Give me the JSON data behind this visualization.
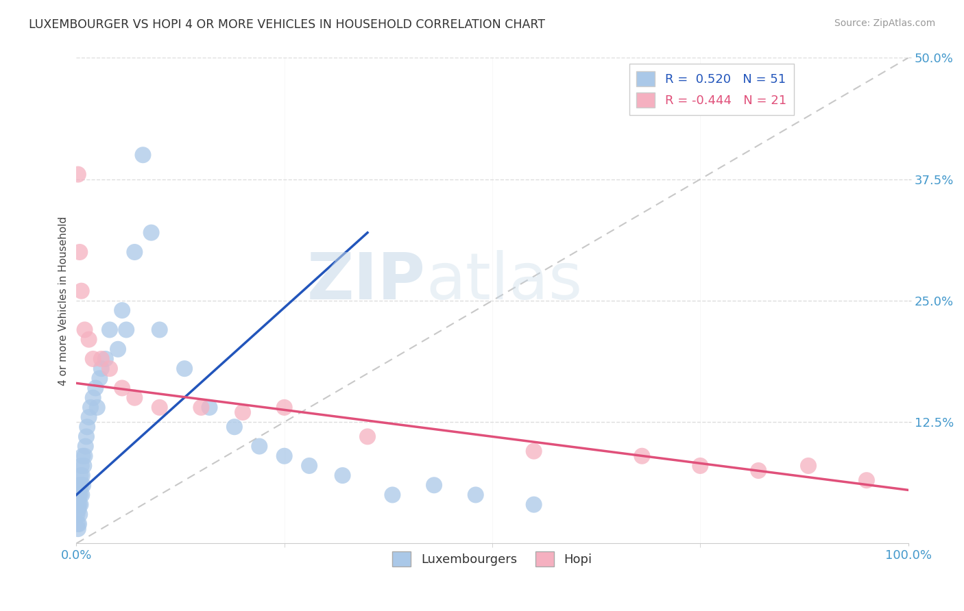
{
  "title": "LUXEMBOURGER VS HOPI 4 OR MORE VEHICLES IN HOUSEHOLD CORRELATION CHART",
  "source": "Source: ZipAtlas.com",
  "ylabel_label": "4 or more Vehicles in Household",
  "R_blue": 0.52,
  "N_blue": 51,
  "R_pink": -0.444,
  "N_pink": 21,
  "blue_color": "#aac8e8",
  "pink_color": "#f5b0c0",
  "blue_line_color": "#2255bb",
  "pink_line_color": "#e0507a",
  "ref_line_color": "#c8c8c8",
  "blue_scatter_x": [
    0.1,
    0.15,
    0.2,
    0.2,
    0.25,
    0.3,
    0.3,
    0.35,
    0.4,
    0.4,
    0.45,
    0.5,
    0.5,
    0.55,
    0.6,
    0.65,
    0.7,
    0.75,
    0.8,
    0.9,
    1.0,
    1.1,
    1.2,
    1.3,
    1.5,
    1.7,
    2.0,
    2.3,
    2.5,
    2.8,
    3.0,
    3.5,
    4.0,
    5.0,
    5.5,
    6.0,
    7.0,
    8.0,
    9.0,
    10.0,
    13.0,
    16.0,
    19.0,
    22.0,
    25.0,
    28.0,
    32.0,
    38.0,
    43.0,
    48.0,
    55.0
  ],
  "blue_scatter_y": [
    3.0,
    2.0,
    4.0,
    1.5,
    3.5,
    5.0,
    2.0,
    4.0,
    6.0,
    3.0,
    5.0,
    7.0,
    4.0,
    6.0,
    8.0,
    5.0,
    7.0,
    9.0,
    6.0,
    8.0,
    9.0,
    10.0,
    11.0,
    12.0,
    13.0,
    14.0,
    15.0,
    16.0,
    14.0,
    17.0,
    18.0,
    19.0,
    22.0,
    20.0,
    24.0,
    22.0,
    30.0,
    40.0,
    32.0,
    22.0,
    18.0,
    14.0,
    12.0,
    10.0,
    9.0,
    8.0,
    7.0,
    5.0,
    6.0,
    5.0,
    4.0
  ],
  "pink_scatter_x": [
    0.2,
    0.4,
    0.6,
    1.0,
    1.5,
    2.0,
    3.0,
    4.0,
    5.5,
    7.0,
    10.0,
    15.0,
    20.0,
    25.0,
    35.0,
    55.0,
    68.0,
    75.0,
    82.0,
    88.0,
    95.0
  ],
  "pink_scatter_y": [
    38.0,
    30.0,
    26.0,
    22.0,
    21.0,
    19.0,
    19.0,
    18.0,
    16.0,
    15.0,
    14.0,
    14.0,
    13.5,
    14.0,
    11.0,
    9.5,
    9.0,
    8.0,
    7.5,
    8.0,
    6.5
  ],
  "blue_line_x0": 0.0,
  "blue_line_y0": 5.0,
  "blue_line_x1": 35.0,
  "blue_line_y1": 32.0,
  "pink_line_x0": 0.0,
  "pink_line_y0": 16.5,
  "pink_line_x1": 100.0,
  "pink_line_y1": 5.5,
  "xmin": 0.0,
  "xmax": 100.0,
  "ymin": 0.0,
  "ymax": 50.0,
  "yticks": [
    12.5,
    25.0,
    37.5,
    50.0
  ],
  "xticks": [
    0,
    100
  ],
  "xtick_labels": [
    "0.0%",
    "100.0%"
  ],
  "ytick_labels": [
    "12.5%",
    "25.0%",
    "37.5%",
    "50.0%"
  ],
  "tick_color": "#4499cc",
  "grid_color": "#dddddd",
  "spine_color": "#cccccc"
}
